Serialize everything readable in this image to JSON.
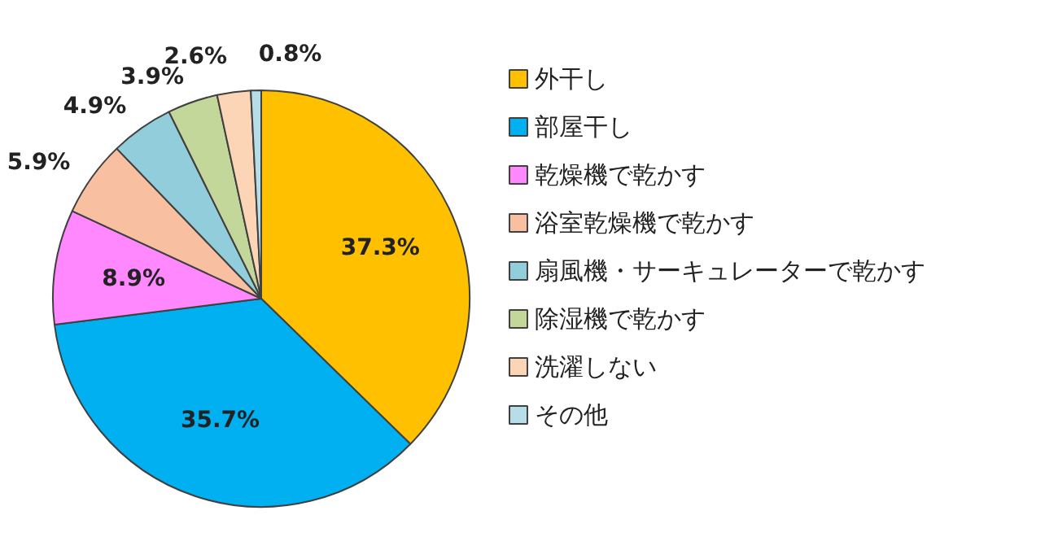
{
  "chart_data": {
    "type": "pie",
    "categories": [
      "外干し",
      "部屋干し",
      "乾燥機で乾かす",
      "浴室乾燥機で乾かす",
      "扇風機・サーキュレーターで乾かす",
      "除湿機で乾かす",
      "洗濯しない",
      "その他"
    ],
    "values": [
      37.3,
      35.7,
      8.9,
      5.9,
      4.9,
      3.9,
      2.6,
      0.8
    ],
    "value_labels": [
      "37.3%",
      "35.7%",
      "8.9%",
      "5.9%",
      "4.9%",
      "3.9%",
      "2.6%",
      "0.8%"
    ],
    "colors": [
      "#ffc000",
      "#00b0f0",
      "#ff88ff",
      "#f8c0a0",
      "#92cddc",
      "#c4d79b",
      "#fbd5b5",
      "#b7dee8"
    ],
    "legend": "right"
  }
}
